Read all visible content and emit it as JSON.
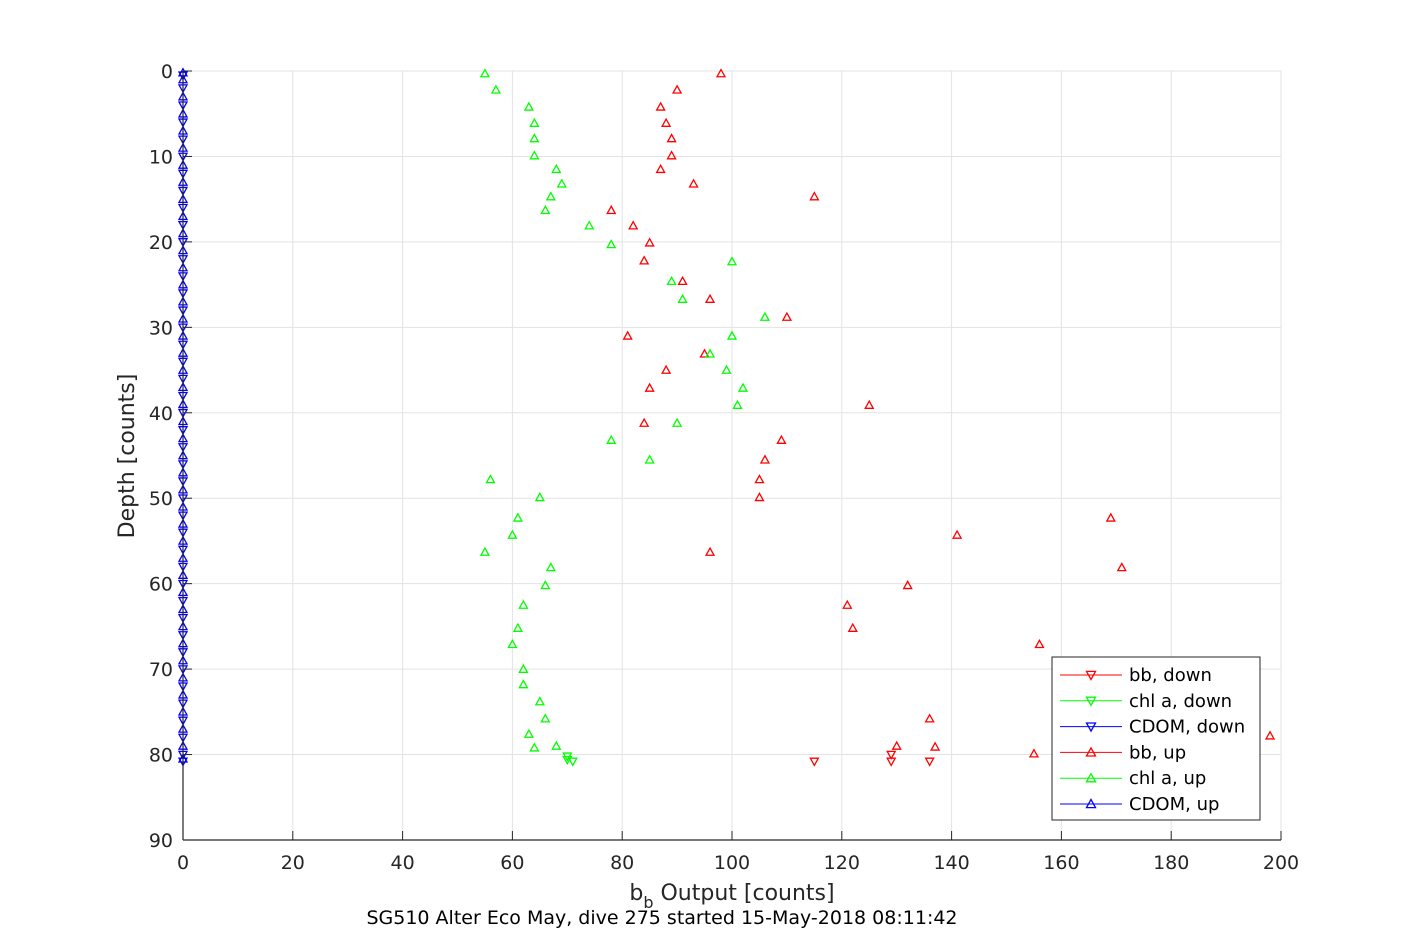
{
  "chart_data": {
    "type": "scatter",
    "xlabel": "b",
    "xlabel_sub": "b",
    "xlabel_rest": " Output [counts]",
    "ylabel": "Depth [counts]",
    "title": "SG510 Alter Eco May, dive 275 started 15-May-2018 08:11:42",
    "xlim": [
      0,
      200
    ],
    "ylim": [
      0,
      90
    ],
    "y_reversed": true,
    "grid": true,
    "legend_position": "bottom-right",
    "xticks": [
      "0",
      "20",
      "40",
      "60",
      "80",
      "100",
      "120",
      "140",
      "160",
      "180",
      "200"
    ],
    "yticks": [
      "0",
      "10",
      "20",
      "30",
      "40",
      "50",
      "60",
      "70",
      "80",
      "90"
    ],
    "series": [
      {
        "name": "bb, down",
        "color": "#ff0000",
        "marker": "down",
        "points": [
          [
            129,
            80.0
          ],
          [
            136,
            80.8
          ],
          [
            115,
            80.8
          ],
          [
            129,
            80.8
          ]
        ]
      },
      {
        "name": "chl a, down",
        "color": "#00ff00",
        "marker": "down",
        "points": [
          [
            70,
            80.2
          ],
          [
            70,
            80.6
          ],
          [
            71,
            80.8
          ]
        ]
      },
      {
        "name": "CDOM, down",
        "color": "#0000ff",
        "marker": "down",
        "points": [
          [
            0,
            0.5
          ],
          [
            0,
            2.0
          ],
          [
            0,
            4.0
          ],
          [
            0,
            6.0
          ],
          [
            0,
            8.0
          ],
          [
            0,
            10.0
          ],
          [
            0,
            12.0
          ],
          [
            0,
            14.0
          ],
          [
            0,
            16.0
          ],
          [
            0,
            18.0
          ],
          [
            0,
            20.0
          ],
          [
            0,
            22.0
          ],
          [
            0,
            24.0
          ],
          [
            0,
            26.0
          ],
          [
            0,
            28.0
          ],
          [
            0,
            30.0
          ],
          [
            0,
            32.0
          ],
          [
            0,
            34.0
          ],
          [
            0,
            36.0
          ],
          [
            0,
            38.0
          ],
          [
            0,
            40.0
          ],
          [
            0,
            42.0
          ],
          [
            0,
            44.0
          ],
          [
            0,
            46.0
          ],
          [
            0,
            48.0
          ],
          [
            0,
            50.0
          ],
          [
            0,
            52.0
          ],
          [
            0,
            54.0
          ],
          [
            0,
            56.0
          ],
          [
            0,
            58.0
          ],
          [
            0,
            60.0
          ],
          [
            0,
            62.0
          ],
          [
            0,
            64.0
          ],
          [
            0,
            66.0
          ],
          [
            0,
            68.0
          ],
          [
            0,
            70.0
          ],
          [
            0,
            72.0
          ],
          [
            0,
            74.0
          ],
          [
            0,
            76.0
          ],
          [
            0,
            78.0
          ],
          [
            0,
            80.0
          ],
          [
            0,
            80.8
          ]
        ]
      },
      {
        "name": "bb, up",
        "color": "#ff0000",
        "marker": "up",
        "points": [
          [
            98,
            0.3
          ],
          [
            90,
            2.2
          ],
          [
            87,
            4.2
          ],
          [
            88,
            6.1
          ],
          [
            89,
            7.9
          ],
          [
            89,
            9.9
          ],
          [
            87,
            11.5
          ],
          [
            93,
            13.2
          ],
          [
            115,
            14.7
          ],
          [
            78,
            16.3
          ],
          [
            82,
            18.1
          ],
          [
            85,
            20.1
          ],
          [
            84,
            22.2
          ],
          [
            91,
            24.6
          ],
          [
            96,
            26.7
          ],
          [
            110,
            28.8
          ],
          [
            81,
            31.0
          ],
          [
            95,
            33.1
          ],
          [
            88,
            35.0
          ],
          [
            85,
            37.1
          ],
          [
            125,
            39.1
          ],
          [
            84,
            41.2
          ],
          [
            109,
            43.2
          ],
          [
            106,
            45.5
          ],
          [
            105,
            47.8
          ],
          [
            105,
            49.9
          ],
          [
            169,
            52.3
          ],
          [
            141,
            54.3
          ],
          [
            96,
            56.3
          ],
          [
            171,
            58.1
          ],
          [
            132,
            60.2
          ],
          [
            121,
            62.5
          ],
          [
            122,
            65.2
          ],
          [
            156,
            67.1
          ],
          [
            136,
            75.8
          ],
          [
            198,
            77.8
          ],
          [
            130,
            79.0
          ],
          [
            137,
            79.1
          ],
          [
            155,
            79.9
          ]
        ]
      },
      {
        "name": "chl a, up",
        "color": "#00ff00",
        "marker": "up",
        "points": [
          [
            55,
            0.3
          ],
          [
            57,
            2.2
          ],
          [
            63,
            4.2
          ],
          [
            64,
            6.1
          ],
          [
            64,
            7.9
          ],
          [
            64,
            9.9
          ],
          [
            68,
            11.5
          ],
          [
            69,
            13.2
          ],
          [
            67,
            14.7
          ],
          [
            66,
            16.3
          ],
          [
            74,
            18.1
          ],
          [
            78,
            20.3
          ],
          [
            100,
            22.3
          ],
          [
            89,
            24.6
          ],
          [
            91,
            26.7
          ],
          [
            106,
            28.8
          ],
          [
            100,
            31.0
          ],
          [
            96,
            33.1
          ],
          [
            99,
            35.0
          ],
          [
            102,
            37.1
          ],
          [
            101,
            39.1
          ],
          [
            90,
            41.2
          ],
          [
            78,
            43.2
          ],
          [
            85,
            45.5
          ],
          [
            56,
            47.8
          ],
          [
            65,
            49.9
          ],
          [
            61,
            52.3
          ],
          [
            60,
            54.3
          ],
          [
            55,
            56.3
          ],
          [
            67,
            58.1
          ],
          [
            66,
            60.2
          ],
          [
            62,
            62.5
          ],
          [
            61,
            65.2
          ],
          [
            60,
            67.1
          ],
          [
            62,
            70.0
          ],
          [
            62,
            71.8
          ],
          [
            65,
            73.8
          ],
          [
            66,
            75.8
          ],
          [
            63,
            77.6
          ],
          [
            68,
            79.0
          ],
          [
            64,
            79.2
          ]
        ]
      },
      {
        "name": "CDOM, up",
        "color": "#0000ff",
        "marker": "up",
        "points": [
          [
            0,
            0.2
          ],
          [
            0,
            1.0
          ],
          [
            0,
            3.0
          ],
          [
            0,
            5.0
          ],
          [
            0,
            7.0
          ],
          [
            0,
            9.0
          ],
          [
            0,
            11.0
          ],
          [
            0,
            13.0
          ],
          [
            0,
            15.0
          ],
          [
            0,
            17.0
          ],
          [
            0,
            19.0
          ],
          [
            0,
            21.0
          ],
          [
            0,
            23.0
          ],
          [
            0,
            25.0
          ],
          [
            0,
            27.0
          ],
          [
            0,
            29.0
          ],
          [
            0,
            31.0
          ],
          [
            0,
            33.0
          ],
          [
            0,
            35.0
          ],
          [
            0,
            37.0
          ],
          [
            0,
            39.0
          ],
          [
            0,
            41.0
          ],
          [
            0,
            43.0
          ],
          [
            0,
            45.0
          ],
          [
            0,
            47.0
          ],
          [
            0,
            49.0
          ],
          [
            0,
            51.0
          ],
          [
            0,
            53.0
          ],
          [
            0,
            55.0
          ],
          [
            0,
            57.0
          ],
          [
            0,
            59.0
          ],
          [
            0,
            61.0
          ],
          [
            0,
            63.0
          ],
          [
            0,
            65.0
          ],
          [
            0,
            67.0
          ],
          [
            0,
            69.0
          ],
          [
            0,
            71.0
          ],
          [
            0,
            73.0
          ],
          [
            0,
            75.0
          ],
          [
            0,
            77.0
          ],
          [
            0,
            79.0
          ],
          [
            0,
            80.5
          ]
        ]
      }
    ]
  }
}
